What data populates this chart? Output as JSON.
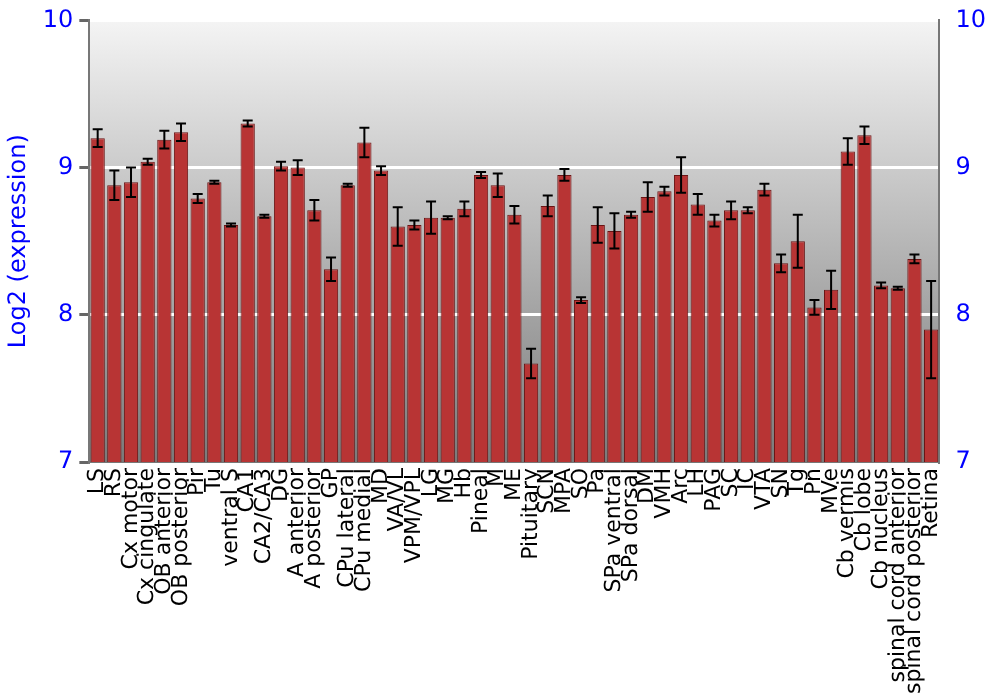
{
  "chart_data": {
    "type": "bar",
    "ylabel": "Log2 (expression)",
    "categories": [
      "LS",
      "RS",
      "Cx motor",
      "Cx cingulate",
      "OB anterior",
      "OB posterior",
      "Pir",
      "Tu",
      "ventral S",
      "CA1",
      "CA2/CA3",
      "DG",
      "A anterior",
      "A posterior",
      "GP",
      "CPu lateral",
      "CPu medial",
      "MD",
      "VA/VL",
      "VPM/VPL",
      "LG",
      "MG",
      "Hb",
      "Pineal",
      "M",
      "ME",
      "Pituitary",
      "SCN",
      "MPA",
      "SO",
      "Pa",
      "SPa ventral",
      "SPa dorsal",
      "DM",
      "VMH",
      "Arc",
      "LH",
      "PAG",
      "SC",
      "IC",
      "VTA",
      "SN",
      "Tg",
      "Pn",
      "MVe",
      "Cb vermis",
      "Cb lobe",
      "Cb nucleus",
      "spinal cord anterior",
      "spinal cord posterior",
      "Retina"
    ],
    "values": [
      9.2,
      8.88,
      8.9,
      9.04,
      9.19,
      9.24,
      8.79,
      8.9,
      8.61,
      9.3,
      8.67,
      9.01,
      9.0,
      8.71,
      8.31,
      8.88,
      9.17,
      8.98,
      8.6,
      8.61,
      8.66,
      8.66,
      8.72,
      8.95,
      8.88,
      8.68,
      7.67,
      8.74,
      8.95,
      8.1,
      8.61,
      8.57,
      8.68,
      8.8,
      8.84,
      8.95,
      8.75,
      8.64,
      8.71,
      8.71,
      8.85,
      8.35,
      8.5,
      8.05,
      8.17,
      9.11,
      9.22,
      8.2,
      8.18,
      8.38,
      7.9
    ],
    "errors": [
      0.06,
      0.1,
      0.1,
      0.02,
      0.06,
      0.06,
      0.03,
      0.01,
      0.01,
      0.02,
      0.01,
      0.03,
      0.05,
      0.07,
      0.08,
      0.01,
      0.1,
      0.03,
      0.13,
      0.03,
      0.11,
      0.01,
      0.05,
      0.02,
      0.08,
      0.06,
      0.1,
      0.07,
      0.04,
      0.02,
      0.12,
      0.12,
      0.02,
      0.1,
      0.03,
      0.12,
      0.07,
      0.04,
      0.06,
      0.02,
      0.04,
      0.06,
      0.18,
      0.05,
      0.13,
      0.09,
      0.06,
      0.02,
      0.01,
      0.03,
      0.33
    ],
    "color": "#b83434",
    "ylim": [
      7,
      10
    ],
    "yticks": [
      7,
      8,
      9,
      10
    ],
    "y2lim": [
      7,
      10
    ],
    "y2ticks": [
      7,
      8,
      9,
      10
    ],
    "grid": "y",
    "legend": false
  }
}
